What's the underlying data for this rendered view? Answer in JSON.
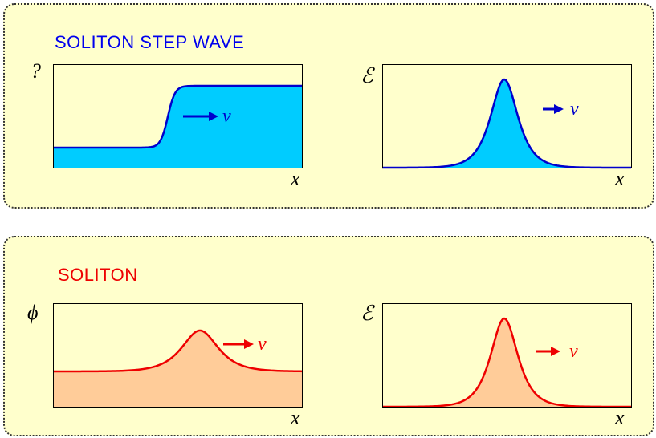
{
  "panels": [
    {
      "title": "SOLITON STEP WAVE",
      "title_color": "#0000ee",
      "stroke_color": "#0000cc",
      "fill_color": "#00ccff",
      "plots": [
        {
          "ylabel": "?",
          "xlabel": "x",
          "shape": "step",
          "velocity_label": "v"
        },
        {
          "ylabel": "ℰ",
          "xlabel": "x",
          "shape": "pulse",
          "velocity_label": "v"
        }
      ]
    },
    {
      "title": "SOLITON",
      "title_color": "#ee0000",
      "stroke_color": "#ee0000",
      "fill_color": "#ffcc99",
      "plots": [
        {
          "ylabel": "ϕ",
          "xlabel": "x",
          "shape": "bump",
          "velocity_label": "v"
        },
        {
          "ylabel": "ℰ",
          "xlabel": "x",
          "shape": "pulse",
          "velocity_label": "v"
        }
      ]
    }
  ]
}
